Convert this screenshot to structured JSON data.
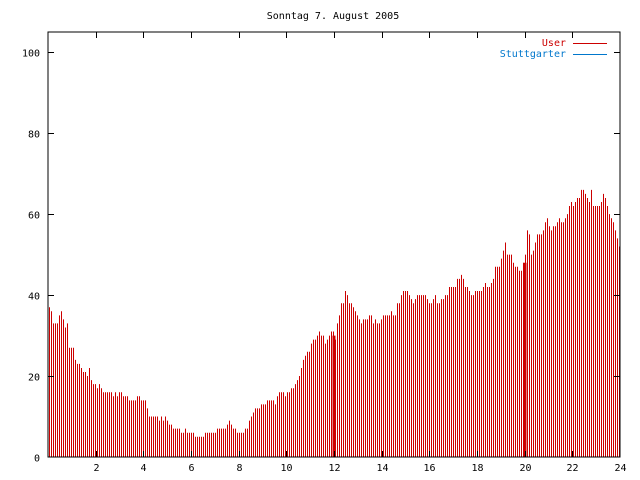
{
  "chart_data": {
    "type": "bar",
    "title": "Sonntag 7. August 2005",
    "xlabel": "",
    "ylabel": "",
    "xlim": [
      0,
      24
    ],
    "ylim": [
      0,
      105
    ],
    "xticks": [
      2,
      4,
      6,
      8,
      10,
      12,
      14,
      16,
      18,
      20,
      22,
      24
    ],
    "yticks": [
      0,
      20,
      40,
      60,
      80,
      100
    ],
    "grid": false,
    "legend_position": "top-right",
    "bar_interval_hours": 0.0833,
    "series": [
      {
        "name": "User",
        "color": "#cc0000",
        "values": [
          37,
          36,
          33,
          33,
          33,
          35,
          36,
          34,
          32,
          33,
          27,
          27,
          27,
          24,
          23,
          23,
          22,
          21,
          21,
          20,
          22,
          19,
          18,
          18,
          17,
          18,
          17,
          16,
          16,
          16,
          16,
          16,
          15,
          16,
          15,
          16,
          16,
          15,
          15,
          15,
          14,
          14,
          14,
          14,
          15,
          15,
          14,
          14,
          14,
          12,
          10,
          10,
          10,
          10,
          10,
          9,
          10,
          9,
          10,
          9,
          8,
          8,
          7,
          7,
          7,
          7,
          6,
          6,
          7,
          6,
          6,
          6,
          6,
          5,
          5,
          5,
          5,
          5,
          6,
          6,
          6,
          6,
          6,
          6,
          7,
          7,
          7,
          7,
          7,
          8,
          9,
          8,
          7,
          7,
          6,
          6,
          6,
          6,
          7,
          7,
          9,
          10,
          11,
          12,
          12,
          12,
          13,
          13,
          13,
          14,
          14,
          14,
          14,
          13,
          15,
          16,
          16,
          16,
          15,
          16,
          16,
          17,
          17,
          18,
          19,
          20,
          22,
          24,
          25,
          26,
          26,
          28,
          29,
          29,
          30,
          31,
          30,
          30,
          28,
          29,
          30,
          31,
          31,
          29,
          33,
          35,
          38,
          38,
          41,
          40,
          38,
          38,
          37,
          36,
          35,
          34,
          33,
          34,
          34,
          34,
          35,
          35,
          33,
          34,
          33,
          33,
          34,
          35,
          35,
          35,
          35,
          36,
          35,
          35,
          38,
          38,
          40,
          41,
          41,
          41,
          40,
          39,
          38,
          39,
          40,
          40,
          40,
          40,
          40,
          39,
          38,
          38,
          39,
          40,
          38,
          38,
          39,
          39,
          40,
          40,
          42,
          42,
          42,
          42,
          44,
          44,
          45,
          44,
          42,
          42,
          41,
          40,
          40,
          41,
          41,
          41,
          41,
          42,
          43,
          42,
          42,
          43,
          44,
          47,
          47,
          47,
          49,
          51,
          53,
          50,
          50,
          50,
          48,
          47,
          47,
          46,
          46,
          48,
          50,
          56,
          55,
          50,
          51,
          53,
          55,
          55,
          55,
          56,
          58,
          59,
          57,
          56,
          57,
          57,
          58,
          59,
          58,
          58,
          59,
          60,
          62,
          63,
          62,
          63,
          64,
          64,
          66,
          66,
          65,
          64,
          63,
          66,
          62,
          62,
          62,
          62,
          63,
          65,
          64,
          62,
          60,
          59,
          58,
          56,
          54,
          52
        ]
      },
      {
        "name": "Stuttgarter",
        "color": "#0077cc",
        "values": []
      }
    ],
    "markers": [
      {
        "x": 12.0,
        "value": 30,
        "color": "#cc0000",
        "width": "thick"
      },
      {
        "x": 20.0,
        "value": 48,
        "color": "#cc0000",
        "width": "thick"
      }
    ]
  }
}
